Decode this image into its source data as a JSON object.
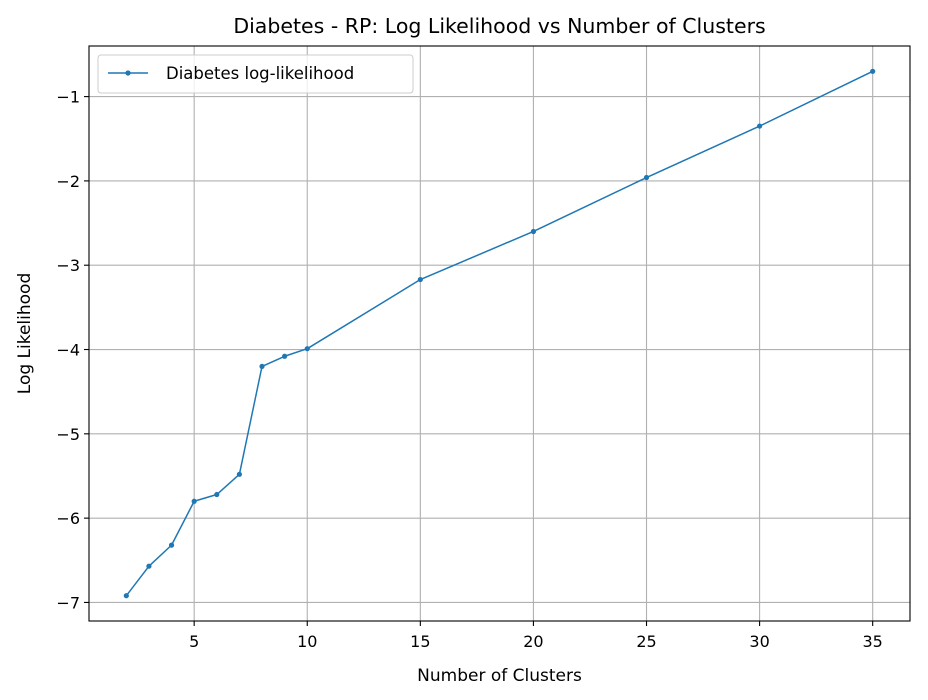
{
  "chart_data": {
    "type": "line",
    "title": "Diabetes - RP: Log Likelihood vs Number of Clusters",
    "xlabel": "Number of Clusters",
    "ylabel": "Log Likelihood",
    "xlim": [
      0.35,
      36.65
    ],
    "ylim": [
      -7.22,
      -0.4
    ],
    "x_ticks": [
      5,
      10,
      15,
      20,
      25,
      30,
      35
    ],
    "x_tick_labels": [
      "5",
      "10",
      "15",
      "20",
      "25",
      "30",
      "35"
    ],
    "y_ticks": [
      -7,
      -6,
      -5,
      -4,
      -3,
      -2,
      -1
    ],
    "y_tick_labels": [
      "−7",
      "−6",
      "−5",
      "−4",
      "−3",
      "−2",
      "−1"
    ],
    "grid": true,
    "legend_position": "top-left",
    "series": [
      {
        "name": "Diabetes log-likelihood",
        "color": "#1f77b4",
        "marker": "circle",
        "x": [
          2,
          3,
          4,
          5,
          6,
          7,
          8,
          9,
          10,
          15,
          20,
          25,
          30,
          35
        ],
        "y": [
          -6.92,
          -6.57,
          -6.32,
          -5.8,
          -5.72,
          -5.48,
          -4.2,
          -4.08,
          -3.99,
          -3.17,
          -2.6,
          -1.96,
          -1.35,
          -0.7
        ]
      }
    ]
  }
}
